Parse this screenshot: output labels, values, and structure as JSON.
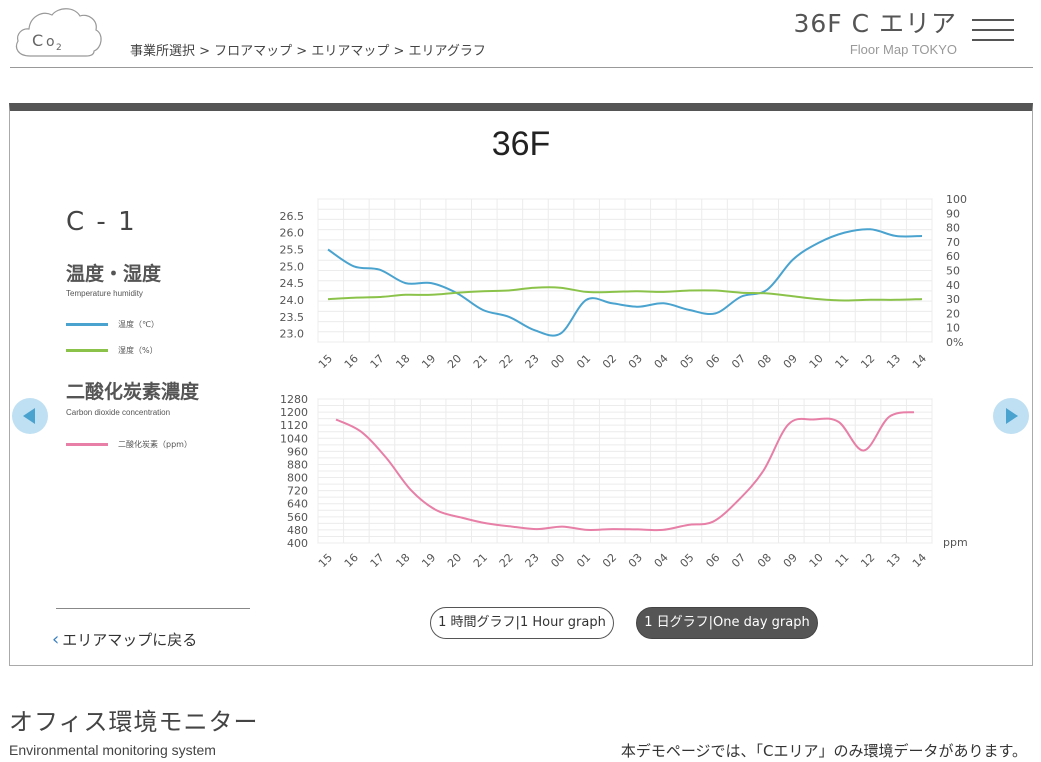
{
  "header": {
    "logo_text": "CO2",
    "breadcrumb": "事業所選択 > フロアマップ > エリアマップ > エリアグラフ",
    "area_title": "36F  C  エリア",
    "area_subtitle": "Floor Map TOKYO"
  },
  "panel": {
    "floor_title": "36F",
    "sensor_name": "C - 1",
    "temp_section": {
      "title": "温度・湿度",
      "subtitle": "Temperature humidity",
      "legend_temp": "温度（℃）",
      "legend_hum": "湿度（%）"
    },
    "co2_section": {
      "title": "二酸化炭素濃度",
      "subtitle": "Carbon dioxide concentration",
      "legend_co2": "二酸化炭素（ppm）"
    },
    "back_link": "エリアマップに戻る",
    "btn_hour": "1 時間グラフ|1 Hour graph",
    "btn_day": "1 日グラフ|One day graph"
  },
  "footer": {
    "title": "オフィス環境モニター",
    "subtitle": "Environmental monitoring system",
    "note": "本デモページでは、「Cエリア」のみ環境データがあります。"
  },
  "colors": {
    "temperature": "#4aa3cf",
    "humidity": "#8bc34a",
    "co2": "#e77fa6",
    "nav_arrow": "#bfe0f3",
    "nav_arrow_glyph": "#4aa3cf"
  },
  "icons": {
    "prev": "prev-arrow-icon",
    "next": "next-arrow-icon",
    "menu": "hamburger-icon",
    "back": "chevron-left-icon"
  },
  "chart_data": [
    {
      "type": "line",
      "x": [
        "15",
        "16",
        "17",
        "18",
        "19",
        "20",
        "21",
        "22",
        "23",
        "00",
        "01",
        "02",
        "03",
        "04",
        "05",
        "06",
        "07",
        "08",
        "09",
        "10",
        "11",
        "12",
        "13",
        "14"
      ],
      "y_left_ticks": [
        "23.0",
        "23.5",
        "24.0",
        "24.5",
        "25.0",
        "25.5",
        "26.0",
        "26.5"
      ],
      "y_right_ticks": [
        "0%",
        "10",
        "20",
        "30",
        "40",
        "50",
        "60",
        "70",
        "80",
        "90",
        "100"
      ],
      "ylim_left": [
        22.75,
        27.0
      ],
      "ylim_right": [
        0,
        100
      ],
      "grid": true,
      "series": [
        {
          "name": "温度（℃）",
          "axis": "left",
          "color": "#4aa3cf",
          "values": [
            25.5,
            25.0,
            24.9,
            24.5,
            24.5,
            24.2,
            23.7,
            23.5,
            23.1,
            23.0,
            24.0,
            23.9,
            23.8,
            23.9,
            23.7,
            23.6,
            24.1,
            24.3,
            25.2,
            25.7,
            26.0,
            26.1,
            25.9,
            25.9
          ]
        },
        {
          "name": "湿度（%）",
          "axis": "right",
          "color": "#8bc34a",
          "values": [
            30,
            31,
            31.5,
            33,
            33,
            34.5,
            35.5,
            36,
            38,
            38,
            35,
            35,
            35.5,
            35,
            36,
            36,
            34.5,
            34,
            32,
            30,
            29,
            29.5,
            29.5,
            30
          ]
        }
      ]
    },
    {
      "type": "line",
      "x": [
        "15",
        "16",
        "17",
        "18",
        "19",
        "20",
        "21",
        "22",
        "23",
        "00",
        "01",
        "02",
        "03",
        "04",
        "05",
        "06",
        "07",
        "08",
        "09",
        "10",
        "11",
        "12",
        "13",
        "14"
      ],
      "y_ticks": [
        "400",
        "480",
        "560",
        "640",
        "720",
        "800",
        "880",
        "960",
        "1040",
        "1120",
        "1200",
        "1280"
      ],
      "ylim": [
        400,
        1280
      ],
      "unit_label": "ppm",
      "grid": true,
      "series": [
        {
          "name": "二酸化炭素（ppm）",
          "color": "#e77fa6",
          "values": [
            1155,
            1080,
            920,
            720,
            600,
            555,
            520,
            500,
            485,
            500,
            480,
            485,
            483,
            480,
            510,
            530,
            660,
            840,
            1125,
            1155,
            1140,
            965,
            1170,
            1200
          ]
        }
      ]
    }
  ]
}
